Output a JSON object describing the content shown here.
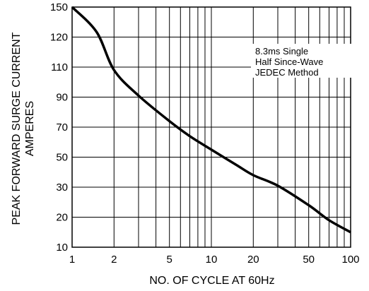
{
  "chart_data": {
    "type": "line",
    "xlabel": "NO. OF CYCLE AT 60Hz",
    "ylabel": [
      "PEAK FORWARD SURGE CURRENT",
      "AMPERES"
    ],
    "x_scale": "log",
    "xlim": [
      1,
      100
    ],
    "ylim": [
      10,
      150
    ],
    "x_ticks": [
      1,
      2,
      5,
      10,
      20,
      50,
      100
    ],
    "x_ticks_labels": [
      "1",
      "2",
      "5",
      "10",
      "20",
      "50",
      "100"
    ],
    "y_ticks": [
      150,
      120,
      110,
      90,
      70,
      50,
      30,
      20,
      10
    ],
    "y_ticks_labels": [
      "150",
      "120",
      "110",
      "90",
      "70",
      "50",
      "30",
      "20",
      "10"
    ],
    "grid": true,
    "annotation": [
      "8.3ms Single",
      "Half Since-Wave",
      "JEDEC Method"
    ],
    "series": [
      {
        "color": "#000000",
        "x": [
          1,
          1.5,
          2,
          3,
          5,
          7,
          10,
          15,
          20,
          30,
          50,
          70,
          100
        ],
        "y": [
          150,
          125,
          108,
          91,
          74,
          64,
          55,
          45,
          38,
          31,
          24,
          19,
          15
        ]
      }
    ]
  }
}
